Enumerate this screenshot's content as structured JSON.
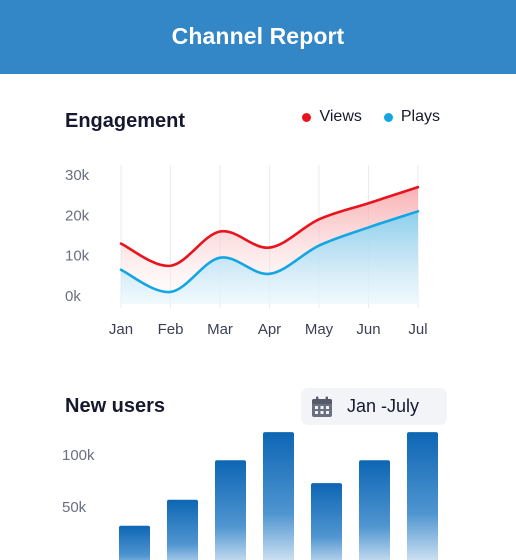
{
  "header": {
    "title": "Channel Report"
  },
  "engagement": {
    "title": "Engagement",
    "legend": [
      {
        "label": "Views",
        "color": "#e8141d"
      },
      {
        "label": "Plays",
        "color": "#14a6e3"
      }
    ]
  },
  "new_users": {
    "title": "New users",
    "date_range": "Jan -July",
    "calendar_icon": "calendar-icon"
  },
  "chart_data": [
    {
      "type": "area",
      "x": [
        "Jan",
        "Feb",
        "Mar",
        "Apr",
        "May",
        "Jun",
        "Jul"
      ],
      "y_ticks": [
        "0k",
        "10k",
        "20k",
        "30k"
      ],
      "ylim": [
        0,
        30000
      ],
      "grid": "vertical",
      "legend_position": "top-right",
      "series": [
        {
          "name": "Views",
          "color": "#e8141d",
          "values": [
            13000,
            7500,
            16000,
            12000,
            19000,
            23000,
            27000
          ]
        },
        {
          "name": "Plays",
          "color": "#14a6e3",
          "values": [
            6500,
            1000,
            9500,
            5500,
            12500,
            17000,
            21000
          ]
        }
      ]
    },
    {
      "type": "bar",
      "y_ticks": [
        "100k",
        "50k"
      ],
      "ylim": [
        0,
        130000
      ],
      "color": "#1a6fb7",
      "values": [
        32000,
        57000,
        95000,
        122000,
        73000,
        95000,
        122000
      ]
    }
  ]
}
